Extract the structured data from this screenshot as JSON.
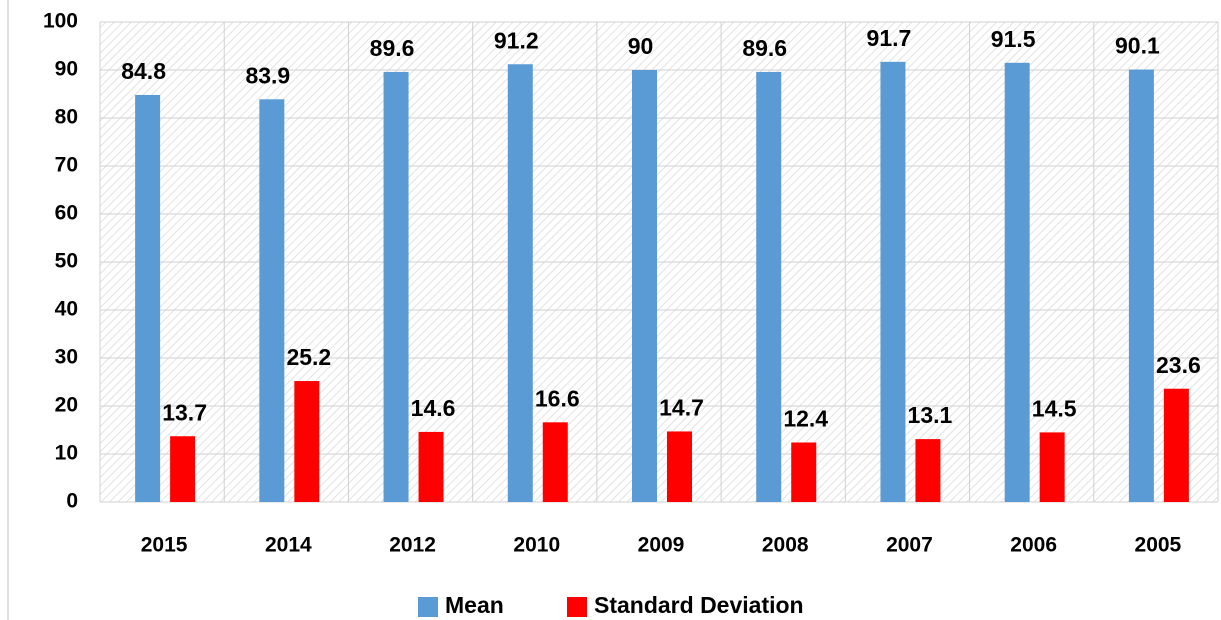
{
  "chart_data": {
    "type": "bar",
    "categories": [
      "2015",
      "2014",
      "2012",
      "2010",
      "2009",
      "2008",
      "2007",
      "2006",
      "2005"
    ],
    "series": [
      {
        "name": "Mean",
        "color": "#5b9bd5",
        "values": [
          84.8,
          83.9,
          89.6,
          91.2,
          90,
          89.6,
          91.7,
          91.5,
          90.1
        ]
      },
      {
        "name": "Standard Deviation",
        "color": "#ff0000",
        "values": [
          13.7,
          25.2,
          14.6,
          16.6,
          14.7,
          12.4,
          13.1,
          14.5,
          23.6
        ]
      }
    ],
    "ylim": [
      0,
      100
    ],
    "yticks": [
      0,
      10,
      20,
      30,
      40,
      50,
      60,
      70,
      80,
      90,
      100
    ],
    "grid": true,
    "legend": "bottom",
    "data_labels": true
  }
}
